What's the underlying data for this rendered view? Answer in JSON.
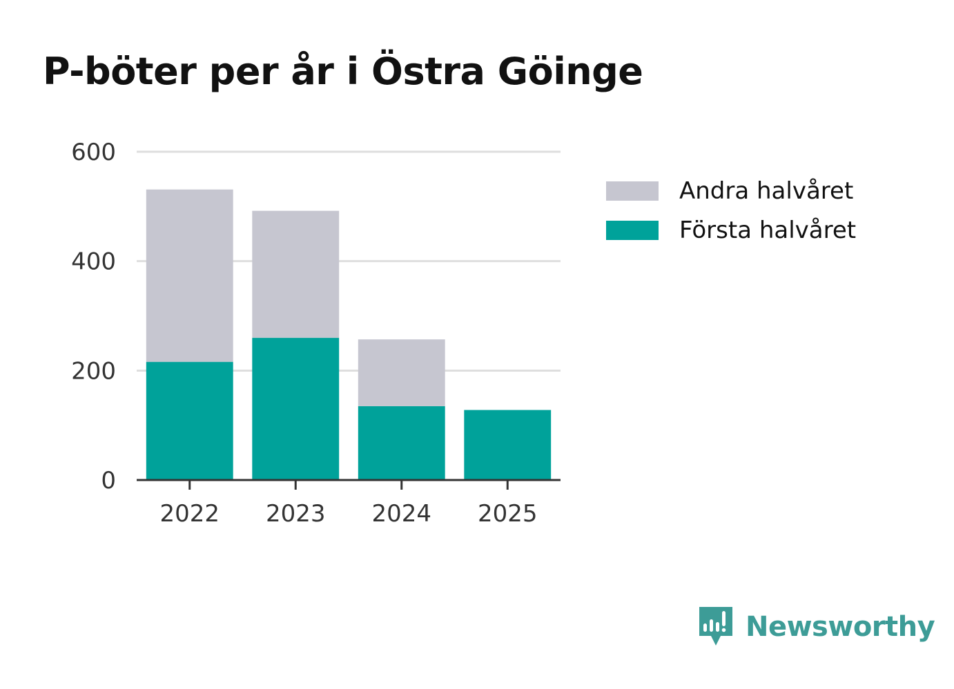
{
  "chart_data": {
    "type": "bar",
    "stacked": true,
    "title": "P-böter per år i Östra Göinge",
    "xlabel": "",
    "ylabel": "",
    "categories": [
      "2022",
      "2023",
      "2024",
      "2025"
    ],
    "series": [
      {
        "name": "Första halvåret",
        "values": [
          216,
          260,
          135,
          128
        ],
        "color": "#00a29a"
      },
      {
        "name": "Andra halvåret",
        "values": [
          315,
          232,
          122,
          0
        ],
        "color": "#c6c6d0"
      }
    ],
    "ylim": [
      0,
      600
    ],
    "yticks": [
      0,
      200,
      400,
      600
    ],
    "grid": true,
    "legend_position": "top-right"
  },
  "legend": {
    "items": [
      {
        "label": "Andra halvåret",
        "color": "#c6c6d0"
      },
      {
        "label": "Första halvåret",
        "color": "#00a29a"
      }
    ]
  },
  "brand": {
    "name": "Newsworthy",
    "icon": "newsworthy-logo-icon",
    "color": "#3d9c97"
  }
}
